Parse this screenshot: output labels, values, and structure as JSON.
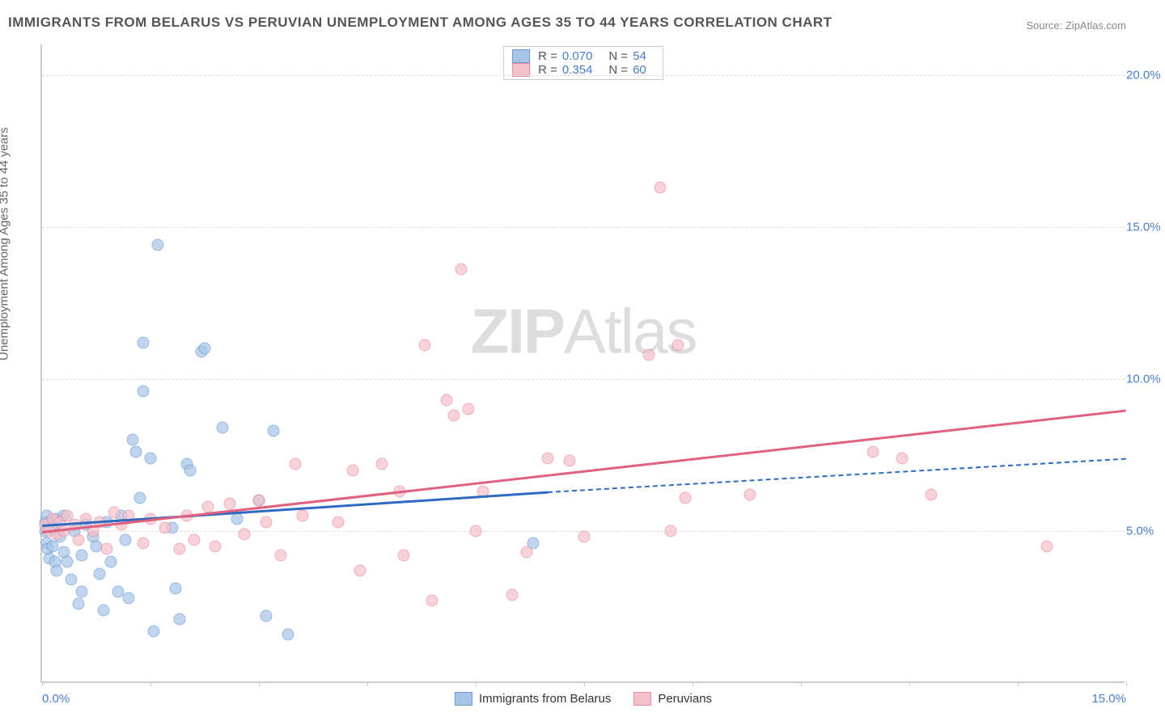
{
  "title": "IMMIGRANTS FROM BELARUS VS PERUVIAN UNEMPLOYMENT AMONG AGES 35 TO 44 YEARS CORRELATION CHART",
  "source_prefix": "Source: ",
  "source_name": "ZipAtlas.com",
  "ylabel": "Unemployment Among Ages 35 to 44 years",
  "watermark_bold": "ZIP",
  "watermark_light": "Atlas",
  "chart": {
    "type": "scatter",
    "xlim": [
      0,
      15
    ],
    "ylim": [
      0,
      21
    ],
    "xticks": [
      0,
      1.5,
      3,
      4.5,
      6,
      7.5,
      9,
      10.5,
      12,
      13.5,
      15
    ],
    "xtick_labels": {
      "0": "0.0%",
      "15": "15.0%"
    },
    "yticks": [
      5,
      10,
      15,
      20
    ],
    "ytick_labels": {
      "5": "5.0%",
      "10": "10.0%",
      "15": "15.0%",
      "20": "20.0%"
    },
    "grid_color": "#dddddd",
    "axis_color": "#cccccc",
    "tick_label_color": "#4a7ec9",
    "background_color": "#ffffff",
    "marker_size": 15,
    "series": [
      {
        "name": "Immigrants from Belarus",
        "color_fill": "#a8c5e8",
        "color_stroke": "#6a9bd1",
        "R": "0.070",
        "N": "54",
        "trend": {
          "x1": 0,
          "y1": 5.2,
          "x2": 7,
          "y2": 6.3,
          "extend_to_x": 15,
          "extend_y": 7.4,
          "color": "#2e6bc0"
        },
        "points": [
          [
            0.05,
            5.0
          ],
          [
            0.05,
            5.3
          ],
          [
            0.07,
            4.6
          ],
          [
            0.07,
            5.5
          ],
          [
            0.08,
            4.4
          ],
          [
            0.1,
            5.3
          ],
          [
            0.1,
            4.1
          ],
          [
            0.15,
            5.1
          ],
          [
            0.15,
            4.5
          ],
          [
            0.18,
            4.0
          ],
          [
            0.2,
            5.4
          ],
          [
            0.2,
            3.7
          ],
          [
            0.25,
            4.8
          ],
          [
            0.3,
            5.5
          ],
          [
            0.3,
            4.3
          ],
          [
            0.35,
            4.0
          ],
          [
            0.4,
            3.4
          ],
          [
            0.45,
            5.0
          ],
          [
            0.5,
            2.6
          ],
          [
            0.55,
            4.2
          ],
          [
            0.55,
            3.0
          ],
          [
            0.6,
            5.2
          ],
          [
            0.7,
            4.8
          ],
          [
            0.75,
            4.5
          ],
          [
            0.8,
            3.6
          ],
          [
            0.85,
            2.4
          ],
          [
            0.9,
            5.3
          ],
          [
            0.95,
            4.0
          ],
          [
            1.05,
            3.0
          ],
          [
            1.1,
            5.5
          ],
          [
            1.15,
            4.7
          ],
          [
            1.2,
            2.8
          ],
          [
            1.25,
            8.0
          ],
          [
            1.3,
            7.6
          ],
          [
            1.35,
            6.1
          ],
          [
            1.4,
            9.6
          ],
          [
            1.4,
            11.2
          ],
          [
            1.5,
            7.4
          ],
          [
            1.55,
            1.7
          ],
          [
            1.6,
            14.4
          ],
          [
            1.8,
            5.1
          ],
          [
            1.85,
            3.1
          ],
          [
            1.9,
            2.1
          ],
          [
            2.0,
            7.2
          ],
          [
            2.05,
            7.0
          ],
          [
            2.2,
            10.9
          ],
          [
            2.25,
            11.0
          ],
          [
            2.5,
            8.4
          ],
          [
            2.7,
            5.4
          ],
          [
            3.0,
            6.0
          ],
          [
            3.1,
            2.2
          ],
          [
            3.2,
            8.3
          ],
          [
            3.4,
            1.6
          ],
          [
            6.8,
            4.6
          ]
        ]
      },
      {
        "name": "Peruvians",
        "color_fill": "#f4c0ca",
        "color_stroke": "#e88ca0",
        "R": "0.354",
        "N": "60",
        "trend": {
          "x1": 0,
          "y1": 5.0,
          "x2": 15,
          "y2": 9.0,
          "color": "#e0607d"
        },
        "points": [
          [
            0.05,
            5.2
          ],
          [
            0.1,
            5.0
          ],
          [
            0.15,
            5.4
          ],
          [
            0.2,
            4.9
          ],
          [
            0.25,
            5.3
          ],
          [
            0.3,
            5.0
          ],
          [
            0.35,
            5.5
          ],
          [
            0.45,
            5.2
          ],
          [
            0.5,
            4.7
          ],
          [
            0.6,
            5.4
          ],
          [
            0.7,
            5.0
          ],
          [
            0.8,
            5.3
          ],
          [
            0.9,
            4.4
          ],
          [
            1.0,
            5.6
          ],
          [
            1.1,
            5.2
          ],
          [
            1.2,
            5.5
          ],
          [
            1.4,
            4.6
          ],
          [
            1.5,
            5.4
          ],
          [
            1.7,
            5.1
          ],
          [
            1.9,
            4.4
          ],
          [
            2.0,
            5.5
          ],
          [
            2.1,
            4.7
          ],
          [
            2.3,
            5.8
          ],
          [
            2.4,
            4.5
          ],
          [
            2.6,
            5.9
          ],
          [
            2.8,
            4.9
          ],
          [
            3.0,
            6.0
          ],
          [
            3.1,
            5.3
          ],
          [
            3.3,
            4.2
          ],
          [
            3.5,
            7.2
          ],
          [
            3.6,
            5.5
          ],
          [
            4.1,
            5.3
          ],
          [
            4.3,
            7.0
          ],
          [
            4.4,
            3.7
          ],
          [
            4.7,
            7.2
          ],
          [
            4.95,
            6.3
          ],
          [
            5.0,
            4.2
          ],
          [
            5.3,
            11.1
          ],
          [
            5.4,
            2.7
          ],
          [
            5.6,
            9.3
          ],
          [
            5.7,
            8.8
          ],
          [
            5.8,
            13.6
          ],
          [
            5.9,
            9.0
          ],
          [
            6.0,
            5.0
          ],
          [
            6.1,
            6.3
          ],
          [
            6.5,
            2.9
          ],
          [
            6.7,
            4.3
          ],
          [
            7.0,
            7.4
          ],
          [
            7.3,
            7.3
          ],
          [
            7.5,
            4.8
          ],
          [
            8.4,
            10.8
          ],
          [
            8.55,
            16.3
          ],
          [
            8.7,
            5.0
          ],
          [
            8.8,
            11.1
          ],
          [
            8.9,
            6.1
          ],
          [
            9.8,
            6.2
          ],
          [
            11.5,
            7.6
          ],
          [
            11.9,
            7.4
          ],
          [
            12.3,
            6.2
          ],
          [
            13.9,
            4.5
          ]
        ]
      }
    ]
  },
  "legend_top": {
    "r_label": "R =",
    "n_label": "N ="
  }
}
